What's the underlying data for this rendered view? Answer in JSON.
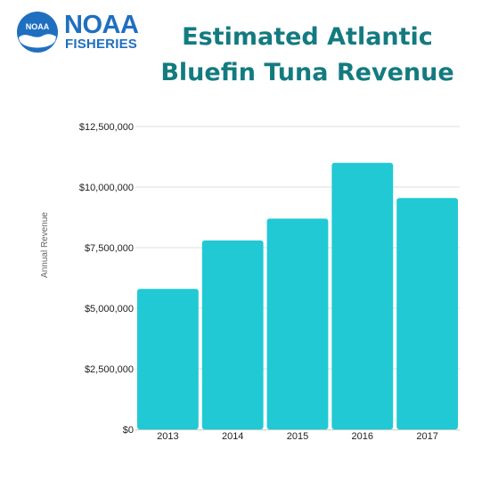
{
  "logo": {
    "icon_name": "noaa-emblem-icon",
    "emblem_text": "NOAA",
    "name_line1": "NOAA",
    "name_line2": "FISHERIES",
    "color": "#1f6fc0"
  },
  "chart_data": {
    "type": "bar",
    "title": "Estimated Atlantic Bluefin Tuna Revenue",
    "xlabel": "",
    "ylabel": "Annual Revenue",
    "categories": [
      "2013",
      "2014",
      "2015",
      "2016",
      "2017"
    ],
    "values": [
      5800000,
      7800000,
      8700000,
      11000000,
      9550000
    ],
    "ylim": [
      0,
      12500000
    ],
    "yticks": [
      0,
      2500000,
      5000000,
      7500000,
      10000000,
      12500000
    ],
    "ytick_labels": [
      "$0",
      "$2,500,000",
      "$5,000,000",
      "$7,500,000",
      "$10,000,000",
      "$12,500,000"
    ],
    "grid": true,
    "legend": "none",
    "bar_color": "#21c9d4",
    "title_color": "#137b80"
  }
}
